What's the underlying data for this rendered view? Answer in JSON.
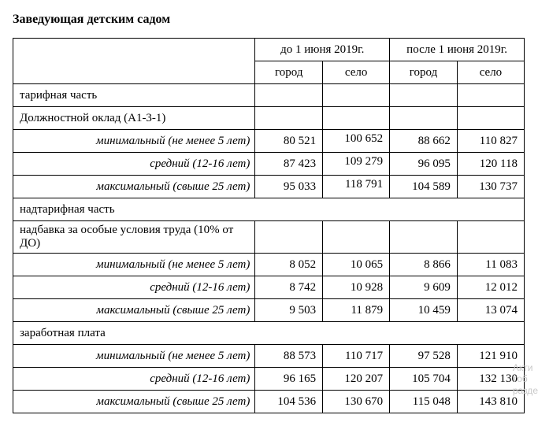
{
  "title": "Заведующая детским садом",
  "header": {
    "period_before": "до 1 июня 2019г.",
    "period_after": "после 1 июня 2019г.",
    "city": "город",
    "village": "село"
  },
  "sections": {
    "tariff_part": "тарифная часть",
    "base_salary": "Должностной оклад (А1-3-1)",
    "supra_tariff": "надтарифная часть",
    "special_bonus": "надбавка за особые условия труда (10% от ДО)",
    "total_salary": "заработная плата"
  },
  "row_labels": {
    "min": "минимальный (не менее 5 лет)",
    "mid": "средний (12-16 лет)",
    "max": "максимальный (свыше 25 лет)"
  },
  "base": {
    "min": {
      "before_city": "80 521",
      "before_village": "100 652",
      "after_city": "88 662",
      "after_village": "110 827"
    },
    "mid": {
      "before_city": "87 423",
      "before_village": "109 279",
      "after_city": "96 095",
      "after_village": "120 118"
    },
    "max": {
      "before_city": "95 033",
      "before_village": "118 791",
      "after_city": "104 589",
      "after_village": "130 737"
    }
  },
  "bonus": {
    "min": {
      "before_city": "8 052",
      "before_village": "10 065",
      "after_city": "8 866",
      "after_village": "11 083"
    },
    "mid": {
      "before_city": "8 742",
      "before_village": "10 928",
      "after_city": "9 609",
      "after_village": "12 012"
    },
    "max": {
      "before_city": "9 503",
      "before_village": "11 879",
      "after_city": "10 459",
      "after_village": "13 074"
    }
  },
  "total": {
    "min": {
      "before_city": "88 573",
      "before_village": "110 717",
      "after_city": "97 528",
      "after_village": "121 910"
    },
    "mid": {
      "before_city": "96 165",
      "before_village": "120 207",
      "after_city": "105 704",
      "after_village": "132 130"
    },
    "max": {
      "before_city": "104 536",
      "before_village": "130 670",
      "after_city": "115 048",
      "after_village": "143 810"
    }
  },
  "watermark": {
    "line1": "Акти",
    "line2": "тоб",
    "line3": "разде"
  }
}
